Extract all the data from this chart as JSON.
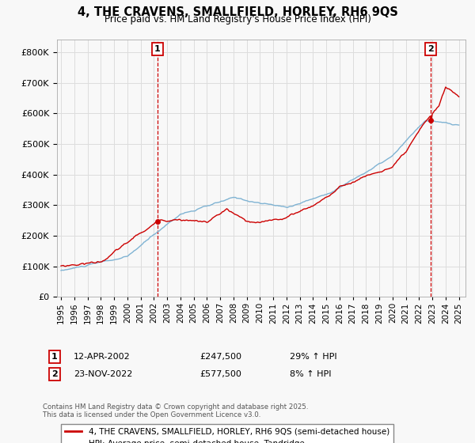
{
  "title": "4, THE CRAVENS, SMALLFIELD, HORLEY, RH6 9QS",
  "subtitle": "Price paid vs. HM Land Registry's House Price Index (HPI)",
  "red_label": "4, THE CRAVENS, SMALLFIELD, HORLEY, RH6 9QS (semi-detached house)",
  "blue_label": "HPI: Average price, semi-detached house, Tandridge",
  "footnote": "Contains HM Land Registry data © Crown copyright and database right 2025.\nThis data is licensed under the Open Government Licence v3.0.",
  "point1_date": "12-APR-2002",
  "point1_price": 247500,
  "point1_label": "29% ↑ HPI",
  "point2_date": "23-NOV-2022",
  "point2_price": 577500,
  "point2_label": "8% ↑ HPI",
  "ylim_min": 0,
  "ylim_max": 840000,
  "x_start_year": 1995,
  "x_end_year": 2025,
  "red_color": "#cc0000",
  "blue_color": "#7fb3d3",
  "vline_color": "#cc0000",
  "grid_color": "#dddddd",
  "bg_color": "#f8f8f8",
  "marker1_x": 2002.28,
  "marker2_x": 2022.9
}
